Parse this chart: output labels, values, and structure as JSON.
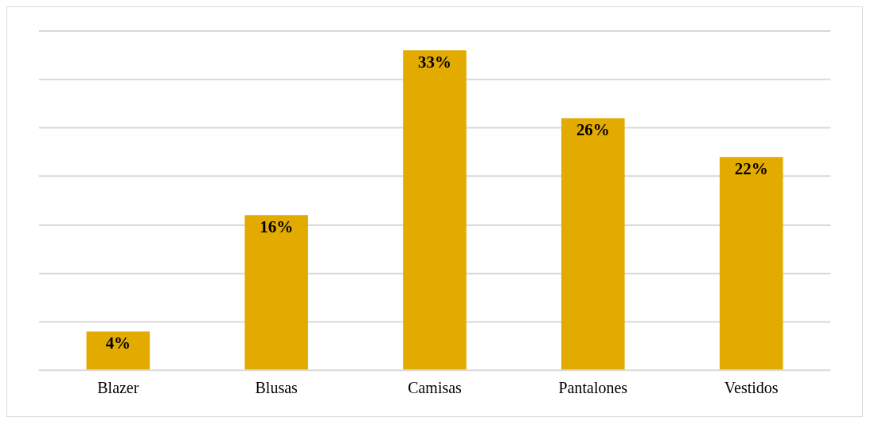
{
  "chart_data": {
    "type": "bar",
    "categories": [
      "Blazer",
      "Blusas",
      "Camisas",
      "Pantalones",
      "Vestidos"
    ],
    "values": [
      4,
      16,
      33,
      26,
      22
    ],
    "color": "#e3aa00",
    "ylim": [
      0,
      35
    ],
    "yticks": [
      {
        "value": 0,
        "label": null
      },
      {
        "value": 5,
        "label": null
      },
      {
        "value": 10,
        "label": null
      },
      {
        "value": 15,
        "label": null
      },
      {
        "value": 20,
        "label": null
      },
      {
        "value": 25,
        "label": null
      },
      {
        "value": 30,
        "label": null
      },
      {
        "value": 35,
        "label": null
      }
    ],
    "tick_labels": "x",
    "grid": "y",
    "legend": false,
    "data_labels": true,
    "value_labels": [
      "4%",
      "16%",
      "33%",
      "26%",
      "22%"
    ]
  }
}
